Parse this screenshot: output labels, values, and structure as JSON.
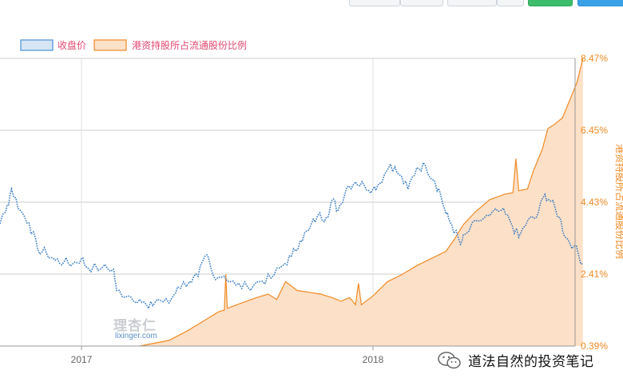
{
  "legend": [
    {
      "label": "收盘价",
      "color": "#4a90d9",
      "fill": "#d6e6f4"
    },
    {
      "label": "港资持股所占流通股份比例",
      "color": "#f08a24",
      "fill": "#fde0c8"
    }
  ],
  "chart_data": {
    "type": "line",
    "x_ticks": [
      "2017",
      "2018"
    ],
    "right_axis": {
      "label": "港资持股所占流通股份比例",
      "ticks": [
        "8.47%",
        "6.45%",
        "4.43%",
        "2.41%",
        "0.39%"
      ],
      "ylim": [
        0.39,
        8.47
      ]
    },
    "series": [
      {
        "name": "收盘价",
        "axis": "left",
        "style": "dotted-line",
        "color": "#3c7fc4",
        "points_pct_scale": [
          [
            2016.58,
            2.95
          ],
          [
            2016.62,
            3.35
          ],
          [
            2016.66,
            3.05
          ],
          [
            2016.7,
            3.6
          ],
          [
            2016.74,
            4.15
          ],
          [
            2016.76,
            4.8
          ],
          [
            2016.79,
            4.2
          ],
          [
            2016.82,
            3.85
          ],
          [
            2016.85,
            3.1
          ],
          [
            2016.88,
            3.0
          ],
          [
            2016.91,
            2.8
          ],
          [
            2016.94,
            2.75
          ],
          [
            2016.97,
            2.7
          ],
          [
            2017.0,
            2.85
          ],
          [
            2017.02,
            2.6
          ],
          [
            2017.07,
            2.58
          ],
          [
            2017.11,
            2.55
          ],
          [
            2017.12,
            1.95
          ],
          [
            2017.16,
            1.8
          ],
          [
            2017.2,
            1.7
          ],
          [
            2017.23,
            1.45
          ],
          [
            2017.26,
            1.7
          ],
          [
            2017.3,
            1.6
          ],
          [
            2017.33,
            2.05
          ],
          [
            2017.37,
            2.2
          ],
          [
            2017.4,
            2.35
          ],
          [
            2017.43,
            2.95
          ],
          [
            2017.45,
            2.4
          ],
          [
            2017.49,
            2.35
          ],
          [
            2017.53,
            2.1
          ],
          [
            2017.57,
            2.05
          ],
          [
            2017.61,
            2.2
          ],
          [
            2017.65,
            2.3
          ],
          [
            2017.69,
            2.65
          ],
          [
            2017.72,
            2.9
          ],
          [
            2017.75,
            3.35
          ],
          [
            2017.78,
            3.65
          ],
          [
            2017.81,
            4.05
          ],
          [
            2017.84,
            4.0
          ],
          [
            2017.86,
            4.5
          ],
          [
            2017.88,
            4.2
          ],
          [
            2017.91,
            4.85
          ],
          [
            2017.94,
            5.0
          ],
          [
            2017.97,
            4.9
          ],
          [
            2018.0,
            4.8
          ],
          [
            2018.02,
            4.95
          ],
          [
            2018.06,
            5.5
          ],
          [
            2018.09,
            5.2
          ],
          [
            2018.12,
            4.8
          ],
          [
            2018.15,
            5.4
          ],
          [
            2018.18,
            5.45
          ],
          [
            2018.21,
            5.05
          ],
          [
            2018.23,
            4.7
          ],
          [
            2018.25,
            4.1
          ],
          [
            2018.27,
            3.8
          ],
          [
            2018.3,
            3.25
          ],
          [
            2018.32,
            3.55
          ],
          [
            2018.36,
            3.9
          ],
          [
            2018.4,
            4.05
          ],
          [
            2018.44,
            4.2
          ],
          [
            2018.47,
            3.9
          ],
          [
            2018.5,
            3.45
          ],
          [
            2018.53,
            3.9
          ],
          [
            2018.56,
            4.0
          ],
          [
            2018.59,
            4.65
          ],
          [
            2018.61,
            4.45
          ],
          [
            2018.64,
            4.0
          ],
          [
            2018.66,
            3.45
          ],
          [
            2018.69,
            3.2
          ],
          [
            2018.72,
            2.7
          ]
        ]
      },
      {
        "name": "港资持股所占流通股份比例",
        "axis": "right",
        "style": "area",
        "color": "#f08a24",
        "fill": "#fde0c8",
        "points_pct": [
          [
            2017.2,
            0.39
          ],
          [
            2017.3,
            0.55
          ],
          [
            2017.36,
            0.8
          ],
          [
            2017.42,
            1.1
          ],
          [
            2017.47,
            1.35
          ],
          [
            2017.49,
            1.4
          ],
          [
            2017.495,
            2.4
          ],
          [
            2017.5,
            1.45
          ],
          [
            2017.55,
            1.6
          ],
          [
            2017.6,
            1.75
          ],
          [
            2017.64,
            1.85
          ],
          [
            2017.67,
            1.7
          ],
          [
            2017.7,
            2.2
          ],
          [
            2017.74,
            1.95
          ],
          [
            2017.78,
            1.9
          ],
          [
            2017.82,
            1.85
          ],
          [
            2017.86,
            1.75
          ],
          [
            2017.89,
            1.65
          ],
          [
            2017.92,
            1.75
          ],
          [
            2017.94,
            1.55
          ],
          [
            2017.95,
            2.15
          ],
          [
            2017.96,
            1.55
          ],
          [
            2018.0,
            1.8
          ],
          [
            2018.05,
            2.2
          ],
          [
            2018.1,
            2.4
          ],
          [
            2018.15,
            2.65
          ],
          [
            2018.2,
            2.85
          ],
          [
            2018.25,
            3.05
          ],
          [
            2018.28,
            3.4
          ],
          [
            2018.31,
            3.8
          ],
          [
            2018.35,
            4.15
          ],
          [
            2018.4,
            4.5
          ],
          [
            2018.45,
            4.65
          ],
          [
            2018.48,
            4.7
          ],
          [
            2018.49,
            5.65
          ],
          [
            2018.5,
            4.75
          ],
          [
            2018.53,
            4.8
          ],
          [
            2018.55,
            5.3
          ],
          [
            2018.58,
            5.9
          ],
          [
            2018.6,
            6.5
          ],
          [
            2018.62,
            6.6
          ],
          [
            2018.65,
            6.8
          ],
          [
            2018.68,
            7.4
          ],
          [
            2018.7,
            7.8
          ],
          [
            2018.72,
            8.47
          ]
        ]
      }
    ],
    "grid": "on"
  },
  "watermark": {
    "text": "理杏仁",
    "url": "lixinger.com"
  },
  "credit": {
    "text": "道法自然的投资笔记"
  }
}
